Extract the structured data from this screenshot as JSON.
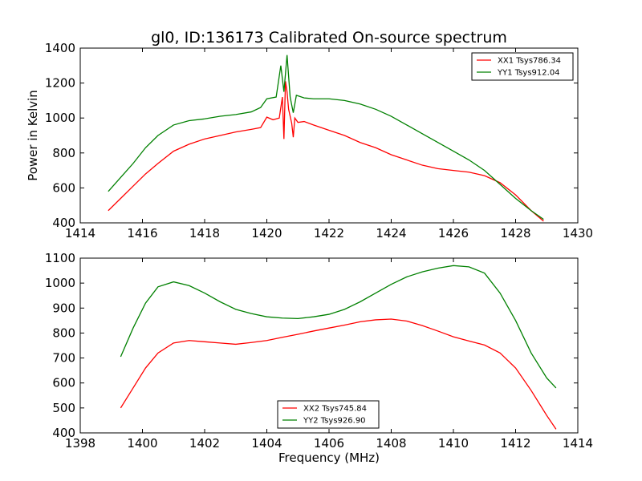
{
  "chart_data": [
    {
      "type": "line",
      "title": "gl0, ID:136173 Calibrated On-source spectrum",
      "xlabel": "",
      "ylabel": "Power in Kelvin",
      "xlim": [
        1414,
        1430
      ],
      "ylim": [
        400,
        1400
      ],
      "xticks": [
        "1414",
        "1416",
        "1418",
        "1420",
        "1422",
        "1424",
        "1426",
        "1428",
        "1430"
      ],
      "yticks": [
        "400",
        "600",
        "800",
        "1000",
        "1200",
        "1400"
      ],
      "legend_position": "top-right",
      "grid": false,
      "series": [
        {
          "name": "XX1 Tsys786.34",
          "color": "#ff0000",
          "points": [
            [
              1414.9,
              470
            ],
            [
              1415.3,
              540
            ],
            [
              1415.7,
              610
            ],
            [
              1416.1,
              680
            ],
            [
              1416.5,
              740
            ],
            [
              1417.0,
              810
            ],
            [
              1417.5,
              850
            ],
            [
              1418.0,
              880
            ],
            [
              1418.5,
              900
            ],
            [
              1419.0,
              920
            ],
            [
              1419.5,
              935
            ],
            [
              1419.8,
              945
            ],
            [
              1420.0,
              1005
            ],
            [
              1420.2,
              990
            ],
            [
              1420.4,
              1000
            ],
            [
              1420.5,
              1120
            ],
            [
              1420.55,
              880
            ],
            [
              1420.6,
              1210
            ],
            [
              1420.65,
              1150
            ],
            [
              1420.7,
              1050
            ],
            [
              1420.8,
              970
            ],
            [
              1420.85,
              890
            ],
            [
              1420.9,
              1000
            ],
            [
              1421.0,
              975
            ],
            [
              1421.2,
              980
            ],
            [
              1421.5,
              960
            ],
            [
              1422.0,
              930
            ],
            [
              1422.5,
              900
            ],
            [
              1423.0,
              860
            ],
            [
              1423.5,
              830
            ],
            [
              1424.0,
              790
            ],
            [
              1424.5,
              760
            ],
            [
              1425.0,
              730
            ],
            [
              1425.5,
              710
            ],
            [
              1426.0,
              700
            ],
            [
              1426.5,
              690
            ],
            [
              1427.0,
              670
            ],
            [
              1427.5,
              630
            ],
            [
              1428.0,
              560
            ],
            [
              1428.5,
              470
            ],
            [
              1428.9,
              410
            ]
          ]
        },
        {
          "name": "YY1 Tsys912.04",
          "color": "#008000",
          "points": [
            [
              1414.9,
              580
            ],
            [
              1415.3,
              660
            ],
            [
              1415.7,
              740
            ],
            [
              1416.1,
              830
            ],
            [
              1416.5,
              900
            ],
            [
              1417.0,
              960
            ],
            [
              1417.5,
              985
            ],
            [
              1418.0,
              995
            ],
            [
              1418.5,
              1010
            ],
            [
              1419.0,
              1020
            ],
            [
              1419.5,
              1035
            ],
            [
              1419.8,
              1060
            ],
            [
              1420.0,
              1110
            ],
            [
              1420.3,
              1120
            ],
            [
              1420.45,
              1300
            ],
            [
              1420.55,
              1150
            ],
            [
              1420.65,
              1360
            ],
            [
              1420.75,
              1120
            ],
            [
              1420.85,
              1030
            ],
            [
              1420.95,
              1130
            ],
            [
              1421.2,
              1115
            ],
            [
              1421.5,
              1110
            ],
            [
              1422.0,
              1110
            ],
            [
              1422.5,
              1100
            ],
            [
              1423.0,
              1080
            ],
            [
              1423.5,
              1050
            ],
            [
              1424.0,
              1010
            ],
            [
              1424.5,
              960
            ],
            [
              1425.0,
              910
            ],
            [
              1425.5,
              860
            ],
            [
              1426.0,
              810
            ],
            [
              1426.5,
              760
            ],
            [
              1427.0,
              700
            ],
            [
              1427.5,
              620
            ],
            [
              1428.0,
              540
            ],
            [
              1428.5,
              470
            ],
            [
              1428.9,
              420
            ]
          ]
        }
      ]
    },
    {
      "type": "line",
      "title": "",
      "xlabel": "Frequency (MHz)",
      "ylabel": "",
      "xlim": [
        1398,
        1414
      ],
      "ylim": [
        400,
        1100
      ],
      "xticks": [
        "1398",
        "1400",
        "1402",
        "1404",
        "1406",
        "1408",
        "1410",
        "1412",
        "1414"
      ],
      "yticks": [
        "400",
        "500",
        "600",
        "700",
        "800",
        "900",
        "1000",
        "1100"
      ],
      "legend_position": "bottom-center",
      "grid": false,
      "series": [
        {
          "name": "XX2 Tsys745.84",
          "color": "#ff0000",
          "points": [
            [
              1399.3,
              500
            ],
            [
              1399.7,
              580
            ],
            [
              1400.1,
              660
            ],
            [
              1400.5,
              720
            ],
            [
              1401.0,
              760
            ],
            [
              1401.5,
              770
            ],
            [
              1402.0,
              765
            ],
            [
              1402.5,
              760
            ],
            [
              1403.0,
              755
            ],
            [
              1403.5,
              762
            ],
            [
              1404.0,
              770
            ],
            [
              1404.5,
              783
            ],
            [
              1405.0,
              795
            ],
            [
              1405.5,
              808
            ],
            [
              1406.0,
              820
            ],
            [
              1406.5,
              832
            ],
            [
              1407.0,
              845
            ],
            [
              1407.5,
              853
            ],
            [
              1408.0,
              856
            ],
            [
              1408.5,
              848
            ],
            [
              1409.0,
              830
            ],
            [
              1409.5,
              808
            ],
            [
              1410.0,
              785
            ],
            [
              1410.5,
              768
            ],
            [
              1411.0,
              752
            ],
            [
              1411.5,
              720
            ],
            [
              1412.0,
              660
            ],
            [
              1412.5,
              570
            ],
            [
              1413.0,
              470
            ],
            [
              1413.3,
              415
            ]
          ]
        },
        {
          "name": "YY2 Tsys926.90",
          "color": "#008000",
          "points": [
            [
              1399.3,
              705
            ],
            [
              1399.7,
              820
            ],
            [
              1400.1,
              920
            ],
            [
              1400.5,
              985
            ],
            [
              1401.0,
              1005
            ],
            [
              1401.5,
              990
            ],
            [
              1402.0,
              960
            ],
            [
              1402.5,
              925
            ],
            [
              1403.0,
              895
            ],
            [
              1403.5,
              878
            ],
            [
              1404.0,
              865
            ],
            [
              1404.5,
              860
            ],
            [
              1405.0,
              858
            ],
            [
              1405.5,
              865
            ],
            [
              1406.0,
              875
            ],
            [
              1406.5,
              895
            ],
            [
              1407.0,
              925
            ],
            [
              1407.5,
              960
            ],
            [
              1408.0,
              995
            ],
            [
              1408.5,
              1025
            ],
            [
              1409.0,
              1045
            ],
            [
              1409.5,
              1060
            ],
            [
              1410.0,
              1070
            ],
            [
              1410.5,
              1065
            ],
            [
              1411.0,
              1040
            ],
            [
              1411.5,
              960
            ],
            [
              1412.0,
              850
            ],
            [
              1412.5,
              720
            ],
            [
              1413.0,
              620
            ],
            [
              1413.3,
              580
            ]
          ]
        }
      ]
    }
  ]
}
